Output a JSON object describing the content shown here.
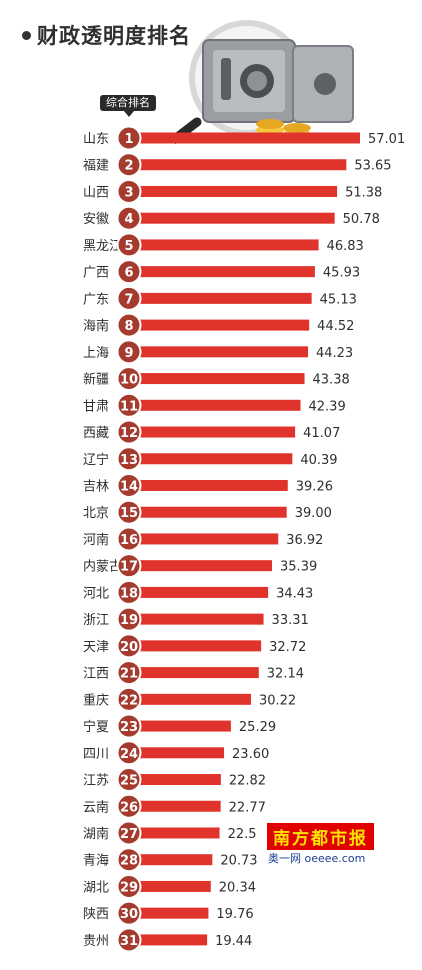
{
  "header": {
    "title": "财政透明度排名",
    "rank_tag": "综合排名"
  },
  "watermark": {
    "brand": "南方都市报",
    "site": "奥一网 oeeee.com"
  },
  "colors": {
    "bar": "#e0332c",
    "badge": "#a53b2f",
    "text": "#2f2f2f"
  },
  "icons": [
    "safe-illustration-icon",
    "magnifier-icon",
    "gold-coins-icon"
  ],
  "chart_data": {
    "type": "bar",
    "orientation": "horizontal",
    "title": "财政透明度排名",
    "categories": [
      "山东",
      "福建",
      "山西",
      "安徽",
      "黑龙江",
      "广西",
      "广东",
      "海南",
      "上海",
      "新疆",
      "甘肃",
      "西藏",
      "辽宁",
      "吉林",
      "北京",
      "河南",
      "内蒙古",
      "河北",
      "浙江",
      "天津",
      "江西",
      "重庆",
      "宁夏",
      "四川",
      "江苏",
      "云南",
      "湖南",
      "青海",
      "湖北",
      "陕西",
      "贵州"
    ],
    "ranks": [
      1,
      2,
      3,
      4,
      5,
      6,
      7,
      8,
      9,
      10,
      11,
      12,
      13,
      14,
      15,
      16,
      17,
      18,
      19,
      20,
      21,
      22,
      23,
      24,
      25,
      26,
      27,
      28,
      29,
      30,
      31
    ],
    "values": [
      57.01,
      53.65,
      51.38,
      50.78,
      46.83,
      45.93,
      45.13,
      44.52,
      44.23,
      43.38,
      42.39,
      41.07,
      40.39,
      39.26,
      39.0,
      36.92,
      35.39,
      34.43,
      33.31,
      32.72,
      32.14,
      30.22,
      25.29,
      23.6,
      22.82,
      22.77,
      22.5,
      20.73,
      20.34,
      19.76,
      19.44
    ],
    "value_labels": [
      "57.01",
      "53.65",
      "51.38",
      "50.78",
      "46.83",
      "45.93",
      "45.13",
      "44.52",
      "44.23",
      "43.38",
      "42.39",
      "41.07",
      "40.39",
      "39.26",
      "39.00",
      "36.92",
      "35.39",
      "34.43",
      "33.31",
      "32.72",
      "32.14",
      "30.22",
      "25.29",
      "23.60",
      "22.82",
      "22.77",
      "22.5",
      "20.73",
      "20.34",
      "19.76",
      "19.44"
    ],
    "xlim": [
      0,
      57.01
    ],
    "grid": false,
    "legend": "none"
  }
}
